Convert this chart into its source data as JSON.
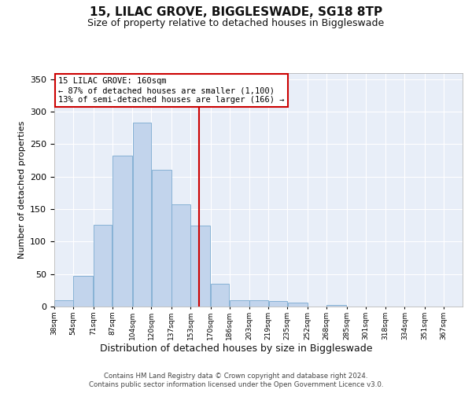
{
  "title": "15, LILAC GROVE, BIGGLESWADE, SG18 8TP",
  "subtitle": "Size of property relative to detached houses in Biggleswade",
  "xlabel": "Distribution of detached houses by size in Biggleswade",
  "ylabel": "Number of detached properties",
  "bin_left_edges": [
    38,
    54,
    71,
    87,
    104,
    120,
    137,
    153,
    170,
    186,
    203,
    219,
    235,
    252,
    268,
    285,
    301,
    318,
    334,
    351,
    367
  ],
  "bar_heights": [
    10,
    47,
    126,
    232,
    283,
    210,
    157,
    125,
    35,
    10,
    10,
    8,
    6,
    0,
    3,
    0,
    0,
    0,
    0,
    0
  ],
  "bar_color": "#c2d4ec",
  "bar_edge_color": "#7aaad0",
  "vline_x": 160,
  "vline_color": "#cc0000",
  "annotation_lines": [
    "15 LILAC GROVE: 160sqm",
    "← 87% of detached houses are smaller (1,100)",
    "13% of semi-detached houses are larger (166) →"
  ],
  "annotation_fontsize": 7.5,
  "title_fontsize": 11,
  "subtitle_fontsize": 9,
  "xlabel_fontsize": 9,
  "ylabel_fontsize": 8,
  "tick_label_fontsize": 6.5,
  "ytick_fontsize": 8,
  "tick_labels": [
    "38sqm",
    "54sqm",
    "71sqm",
    "87sqm",
    "104sqm",
    "120sqm",
    "137sqm",
    "153sqm",
    "170sqm",
    "186sqm",
    "203sqm",
    "219sqm",
    "235sqm",
    "252sqm",
    "268sqm",
    "285sqm",
    "301sqm",
    "318sqm",
    "334sqm",
    "351sqm",
    "367sqm"
  ],
  "ylim": [
    0,
    360
  ],
  "yticks": [
    0,
    50,
    100,
    150,
    200,
    250,
    300,
    350
  ],
  "bg_color": "#e8eef8",
  "fig_bg": "#ffffff",
  "grid_color": "#ffffff",
  "footer1": "Contains HM Land Registry data © Crown copyright and database right 2024.",
  "footer2": "Contains public sector information licensed under the Open Government Licence v3.0.",
  "footer_fontsize": 6.2
}
